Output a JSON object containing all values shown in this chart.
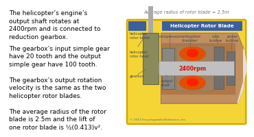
{
  "bg_color": "#ffffff",
  "paragraphs": [
    "The helicopter’s engine’s\noutput shaft rotates at\n2400rpm and is connected to\nreduction gearbox.",
    "The gearbox’s input simple gear\nhave 20 tooth and the output\nsimple gear have 100 tooth.",
    "The gearbox’s output rotation\nvelocity is the same as the two\nhelicopter rotor blades.",
    "The average radius of the rotor\nblade is 2.5m and the lift of\none rotor blade is ½(0.413)v²."
  ],
  "diagram_title": "Average radius of rotor blade = 2.5m",
  "diagram_border_color": "#d4a800",
  "heli_label": "Helicopter Rotor Blade",
  "red_text": "2400rpm",
  "copyright": "© 2012 Encyclopædia Britannica, Inc.",
  "font_size_main": 6.5,
  "diagram_bg": "#f5d535",
  "blue_header": "#3a5fa0",
  "gearbox_color": "#8a8a5a",
  "engine_outer": "#c09060",
  "engine_inner_bg": "#b07848",
  "shaft_color": "#aaaaaa",
  "compressor_color": "#888880",
  "flame_outer": "#e05000",
  "flame_inner": "#ff2000",
  "turbine_color": "#707070",
  "cone_color": "#d4b090",
  "label_color": "#444444",
  "copyright_color": "#666666"
}
